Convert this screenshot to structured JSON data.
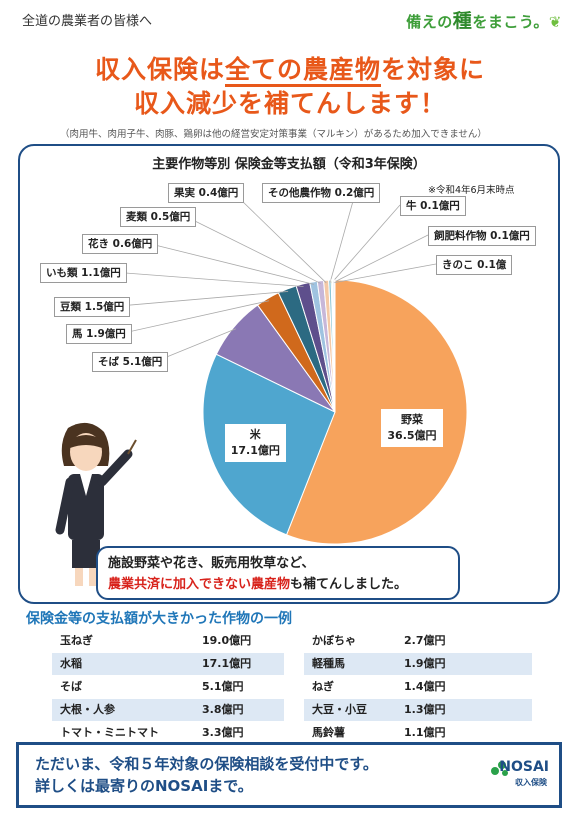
{
  "addressee": "全道の農業者の皆様へ",
  "slogan": {
    "pre": "備えの",
    "kanji": "種",
    "post": "をまこう。"
  },
  "headline": {
    "l1_pre": "収入保険は",
    "l1_ul1": "全ての",
    "l1_ul2": "農産物",
    "l1_post": "を対象に",
    "l2": "収入減少を補てんします！"
  },
  "note": "（肉用牛、肉用子牛、肉豚、鶏卵は他の経営安定対策事業（マルキン）があるため加入できません）",
  "chart_data": {
    "type": "pie",
    "title": "主要作物等別  保険金等支払額（令和3年保険）",
    "as_of": "※令和4年6月末時点",
    "unit": "億円",
    "slices": [
      {
        "label": "野菜",
        "value": 36.5,
        "color": "#f7a35c",
        "text": "36.5億円"
      },
      {
        "label": "米",
        "value": 17.1,
        "color": "#4fa6cf",
        "text": "17.1億円"
      },
      {
        "label": "そば",
        "value": 5.1,
        "color": "#8a78b4",
        "text": "そば  5.1億円"
      },
      {
        "label": "馬",
        "value": 1.9,
        "color": "#d0691c",
        "text": "馬  1.9億円"
      },
      {
        "label": "豆類",
        "value": 1.5,
        "color": "#2c6a82",
        "text": "豆類  1.5億円"
      },
      {
        "label": "いも類",
        "value": 1.1,
        "color": "#5e4f8c",
        "text": "いも類  1.1億円"
      },
      {
        "label": "花き",
        "value": 0.6,
        "color": "#9fc3e0",
        "text": "花き  0.6億円"
      },
      {
        "label": "麦類",
        "value": 0.5,
        "color": "#c7b7d9",
        "text": "麦類  0.5億円"
      },
      {
        "label": "果実",
        "value": 0.4,
        "color": "#f4c9a6",
        "text": "果実  0.4億円"
      },
      {
        "label": "その他農作物",
        "value": 0.2,
        "color": "#8cc7d6",
        "text": "その他農作物  0.2億円"
      },
      {
        "label": "牛",
        "value": 0.1,
        "color": "#b7d7a8",
        "text": "牛  0.1億円"
      },
      {
        "label": "飼肥料作物",
        "value": 0.1,
        "color": "#a5a5a5",
        "text": "飼肥料作物  0.1億円"
      },
      {
        "label": "きのこ",
        "value": 0.1,
        "color": "#e7e1ef",
        "text": "きのこ  0.1億"
      }
    ]
  },
  "callout": {
    "line1": "施設野菜や花き、販売用牧草など、",
    "line2_hl": "農業共済に加入できない農産物",
    "line2_post": "も補てんしました。"
  },
  "examples": {
    "title": "保険金等の支払額が大きかった作物の一例",
    "left": [
      {
        "crop": "玉ねぎ",
        "amount": "19.0億円"
      },
      {
        "crop": "水稲",
        "amount": "17.1億円"
      },
      {
        "crop": "そば",
        "amount": "5.1億円"
      },
      {
        "crop": "大根・人参",
        "amount": "3.8億円"
      },
      {
        "crop": "トマト・ミニトマト",
        "amount": "3.3億円"
      }
    ],
    "right": [
      {
        "crop": "かぼちゃ",
        "amount": "2.7億円"
      },
      {
        "crop": "軽種馬",
        "amount": "1.9億円"
      },
      {
        "crop": "ねぎ",
        "amount": "1.4億円"
      },
      {
        "crop": "大豆・小豆",
        "amount": "1.3億円"
      },
      {
        "crop": "馬鈴薯",
        "amount": "1.1億円"
      }
    ]
  },
  "footer": {
    "line1": "ただいま、令和５年対象の保険相談を受付中です。",
    "line2": "詳しくは最寄りのNOSAIまで。",
    "logo": "NOSAI",
    "logo_sub": "収入保険"
  }
}
